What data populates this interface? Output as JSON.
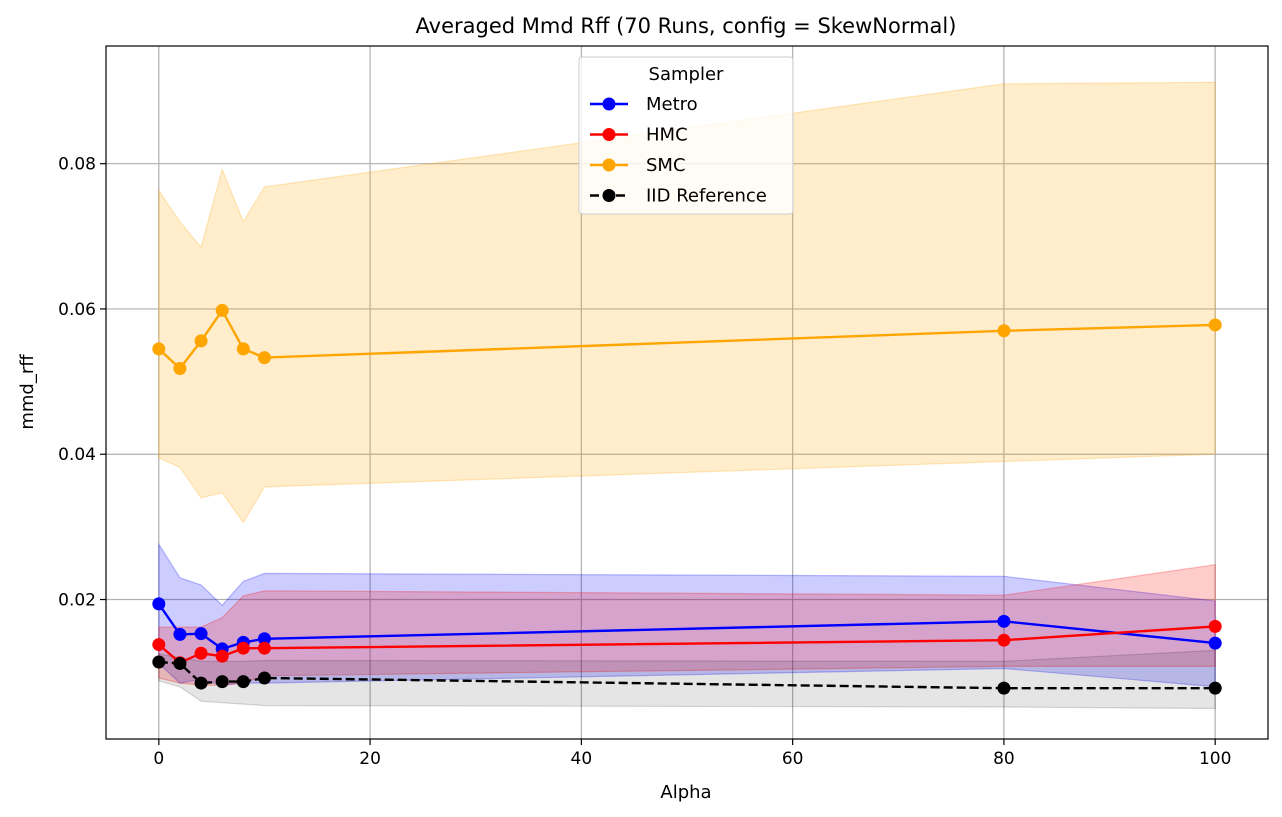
{
  "chart_data": {
    "type": "line",
    "title": "Averaged Mmd Rff (70 Runs, config = SkewNormal)",
    "xlabel": "Alpha",
    "ylabel": "mmd_rff",
    "xlim": [
      -5,
      105
    ],
    "ylim": [
      0.0008,
      0.0962
    ],
    "xticks": [
      0,
      20,
      40,
      60,
      80,
      100
    ],
    "xtick_labels": [
      "0",
      "20",
      "40",
      "60",
      "80",
      "100"
    ],
    "yticks": [
      0.02,
      0.04,
      0.06,
      0.08
    ],
    "ytick_labels": [
      "0.02",
      "0.04",
      "0.06",
      "0.08"
    ],
    "grid": true,
    "legend": {
      "title": "Sampler",
      "placement": "top-center"
    },
    "x": [
      0,
      2,
      4,
      6,
      8,
      10,
      80,
      100
    ],
    "series": [
      {
        "name": "Metro",
        "color": "#0000ff",
        "dashed": false,
        "values": [
          0.0194,
          0.0152,
          0.0153,
          0.0132,
          0.0141,
          0.0146,
          0.017,
          0.014
        ],
        "lower": [
          0.0112,
          0.0085,
          0.009,
          0.0082,
          0.0085,
          0.0085,
          0.0105,
          0.008
        ],
        "upper": [
          0.0276,
          0.023,
          0.022,
          0.0192,
          0.0225,
          0.0236,
          0.0232,
          0.0198
        ],
        "band_opacity": 0.2
      },
      {
        "name": "HMC",
        "color": "#ff0000",
        "dashed": false,
        "values": [
          0.0138,
          0.0113,
          0.0126,
          0.0122,
          0.0133,
          0.0133,
          0.0144,
          0.0163
        ],
        "lower": [
          0.0092,
          0.0085,
          0.0082,
          0.0082,
          0.0085,
          0.0095,
          0.0108,
          0.0108
        ],
        "upper": [
          0.0162,
          0.0162,
          0.0162,
          0.0175,
          0.0205,
          0.0212,
          0.0206,
          0.0248
        ],
        "band_opacity": 0.2
      },
      {
        "name": "SMC",
        "color": "#ffa500",
        "dashed": false,
        "values": [
          0.0545,
          0.0518,
          0.0556,
          0.0598,
          0.0545,
          0.0533,
          0.057,
          0.0578
        ],
        "lower": [
          0.0395,
          0.0382,
          0.034,
          0.0347,
          0.0306,
          0.0355,
          0.039,
          0.04
        ],
        "upper": [
          0.0763,
          0.072,
          0.0685,
          0.0792,
          0.072,
          0.0768,
          0.091,
          0.0912
        ],
        "band_opacity": 0.2
      },
      {
        "name": "IID Reference",
        "color": "#000000",
        "dashed": true,
        "values": [
          0.0114,
          0.0112,
          0.0085,
          0.0087,
          0.0087,
          0.0092,
          0.0078,
          0.0078
        ],
        "lower": [
          0.0088,
          0.008,
          0.006,
          0.0058,
          0.0056,
          0.0054,
          0.0052,
          0.005
        ],
        "upper": [
          0.0125,
          0.012,
          0.0115,
          0.0115,
          0.0115,
          0.0116,
          0.0115,
          0.013
        ],
        "band_opacity": 0.1
      }
    ]
  }
}
